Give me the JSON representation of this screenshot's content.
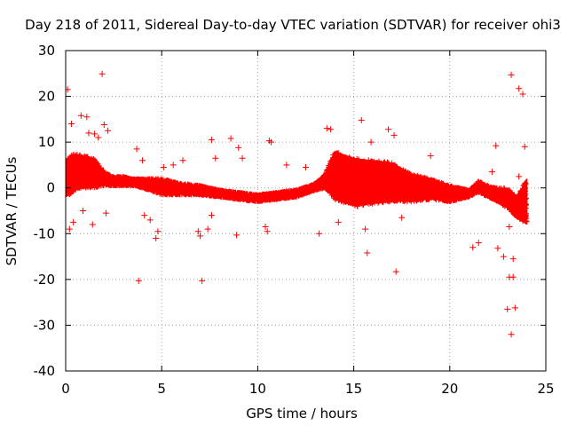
{
  "chart_data": {
    "type": "scatter",
    "title": "Day 218 of 2011, Sidereal Day-to-day VTEC variation (SDTVAR) for receiver ohi3",
    "xlabel": "GPS time / hours",
    "ylabel": "SDTVAR / TECUs",
    "xlim": [
      0,
      25
    ],
    "ylim": [
      -40,
      30
    ],
    "xticks": [
      0,
      5,
      10,
      15,
      20,
      25
    ],
    "yticks": [
      -40,
      -30,
      -20,
      -10,
      0,
      10,
      20,
      30
    ],
    "grid": true,
    "marker": "+",
    "color": "#ff0000",
    "series": [
      {
        "name": "SDTVAR",
        "band": {
          "x": [
            0.0,
            0.2,
            0.5,
            1.0,
            1.5,
            2.0,
            2.5,
            3.0,
            3.5,
            4.0,
            5.0,
            6.0,
            7.0,
            8.0,
            9.0,
            10.0,
            11.0,
            12.0,
            13.0,
            13.5,
            13.8,
            14.0,
            15.0,
            16.0,
            17.0,
            18.0,
            19.0,
            20.0,
            21.0,
            21.5,
            22.0,
            22.5,
            23.0,
            23.5,
            24.0
          ],
          "y_low": [
            -2.0,
            -1.5,
            -0.5,
            0.0,
            0.0,
            0.5,
            0.5,
            0.5,
            0.5,
            0.0,
            -1.5,
            -1.5,
            -1.5,
            -2.0,
            -2.5,
            -3.0,
            -2.5,
            -2.0,
            -0.5,
            0.0,
            -1.5,
            -2.5,
            -4.0,
            -3.5,
            -3.0,
            -3.0,
            -2.5,
            -3.0,
            -2.0,
            -1.0,
            -2.0,
            -3.0,
            -4.5,
            -6.5,
            -8.0
          ],
          "y_high": [
            6.0,
            7.0,
            7.5,
            7.0,
            6.5,
            3.5,
            2.5,
            2.5,
            2.0,
            2.0,
            2.0,
            1.0,
            0.5,
            -0.5,
            -1.0,
            -1.5,
            -1.0,
            -0.5,
            1.0,
            3.0,
            6.0,
            8.0,
            6.5,
            6.0,
            5.5,
            3.0,
            2.0,
            0.5,
            -0.5,
            1.5,
            0.5,
            0.0,
            0.0,
            -2.0,
            2.0
          ]
        },
        "outliers": [
          [
            0.1,
            21.5
          ],
          [
            0.3,
            14.0
          ],
          [
            0.2,
            -9.0
          ],
          [
            0.4,
            -7.5
          ],
          [
            0.8,
            15.8
          ],
          [
            1.1,
            15.5
          ],
          [
            1.2,
            12.0
          ],
          [
            1.5,
            11.8
          ],
          [
            1.7,
            11.0
          ],
          [
            1.9,
            24.9
          ],
          [
            2.0,
            13.8
          ],
          [
            2.2,
            12.5
          ],
          [
            0.9,
            -5.0
          ],
          [
            1.4,
            -8.0
          ],
          [
            2.1,
            -5.5
          ],
          [
            3.7,
            8.5
          ],
          [
            3.8,
            -20.3
          ],
          [
            4.0,
            6.0
          ],
          [
            4.1,
            -6.0
          ],
          [
            4.4,
            -7.0
          ],
          [
            4.7,
            -11.0
          ],
          [
            4.8,
            -9.5
          ],
          [
            5.1,
            4.5
          ],
          [
            5.6,
            5.0
          ],
          [
            6.1,
            6.0
          ],
          [
            6.9,
            -9.5
          ],
          [
            7.0,
            -10.5
          ],
          [
            7.1,
            -20.3
          ],
          [
            7.4,
            -9.0
          ],
          [
            7.6,
            -6.0
          ],
          [
            7.6,
            10.5
          ],
          [
            7.8,
            6.5
          ],
          [
            8.6,
            10.8
          ],
          [
            8.9,
            -10.3
          ],
          [
            9.0,
            8.8
          ],
          [
            9.2,
            6.5
          ],
          [
            10.4,
            -8.5
          ],
          [
            10.6,
            10.3
          ],
          [
            10.7,
            10.0
          ],
          [
            10.5,
            -9.5
          ],
          [
            11.5,
            5.0
          ],
          [
            12.5,
            4.5
          ],
          [
            13.2,
            -10.0
          ],
          [
            13.6,
            13.0
          ],
          [
            13.8,
            12.8
          ],
          [
            14.2,
            -7.5
          ],
          [
            15.2,
            -4.0
          ],
          [
            15.4,
            14.8
          ],
          [
            15.6,
            -9.0
          ],
          [
            15.7,
            -14.2
          ],
          [
            15.9,
            10.0
          ],
          [
            16.8,
            12.8
          ],
          [
            17.1,
            11.5
          ],
          [
            17.2,
            -18.3
          ],
          [
            17.5,
            -6.5
          ],
          [
            19.0,
            7.0
          ],
          [
            21.2,
            -13.0
          ],
          [
            21.5,
            -12.0
          ],
          [
            22.2,
            3.5
          ],
          [
            22.4,
            9.2
          ],
          [
            22.5,
            -13.2
          ],
          [
            22.8,
            -15.0
          ],
          [
            23.0,
            -26.5
          ],
          [
            23.1,
            -19.5
          ],
          [
            23.2,
            24.7
          ],
          [
            23.2,
            -32.0
          ],
          [
            23.3,
            -19.5
          ],
          [
            23.4,
            -26.2
          ],
          [
            23.6,
            21.7
          ],
          [
            23.8,
            20.5
          ],
          [
            23.6,
            2.5
          ],
          [
            23.9,
            9.0
          ],
          [
            23.1,
            -8.5
          ],
          [
            23.3,
            -15.5
          ]
        ]
      }
    ]
  }
}
